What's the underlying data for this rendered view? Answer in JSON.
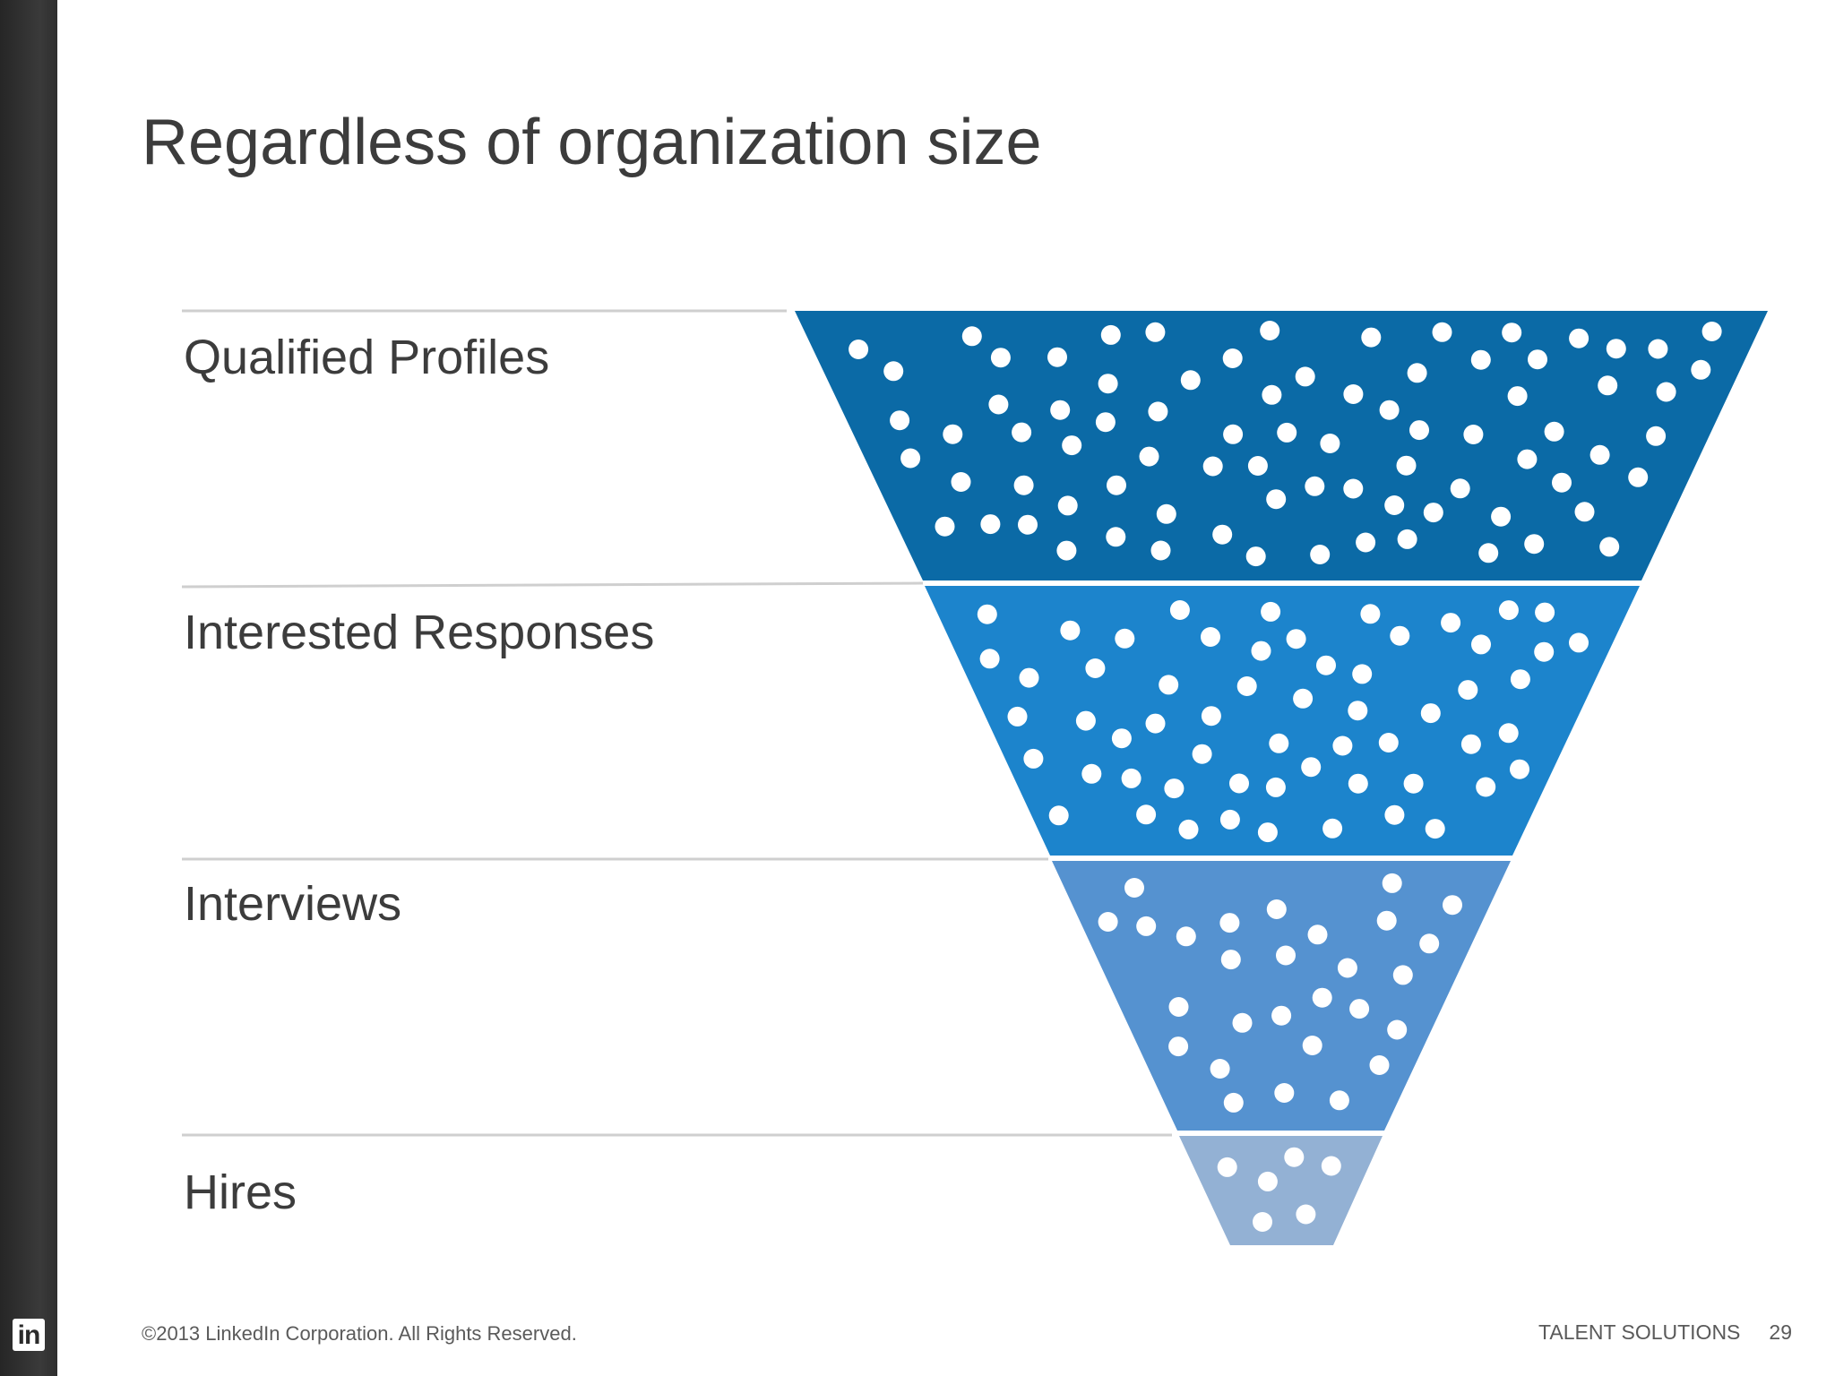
{
  "slide": {
    "title": "Regardless of organization size"
  },
  "funnel": {
    "stages": [
      {
        "label": "Qualified Profiles",
        "color": "#0b6aa6"
      },
      {
        "label": "Interested Responses",
        "color": "#1c84cc"
      },
      {
        "label": "Interviews",
        "color": "#5592d0"
      },
      {
        "label": "Hires",
        "color": "#93b1d4"
      }
    ],
    "divider_color": "#cfcfcf"
  },
  "footer": {
    "copyright": "©2013 LinkedIn Corporation. All Rights Reserved.",
    "section": "TALENT SOLUTIONS",
    "page_number": "29"
  },
  "logo": {
    "text": "in",
    "icon": "linkedin-logo-icon"
  }
}
